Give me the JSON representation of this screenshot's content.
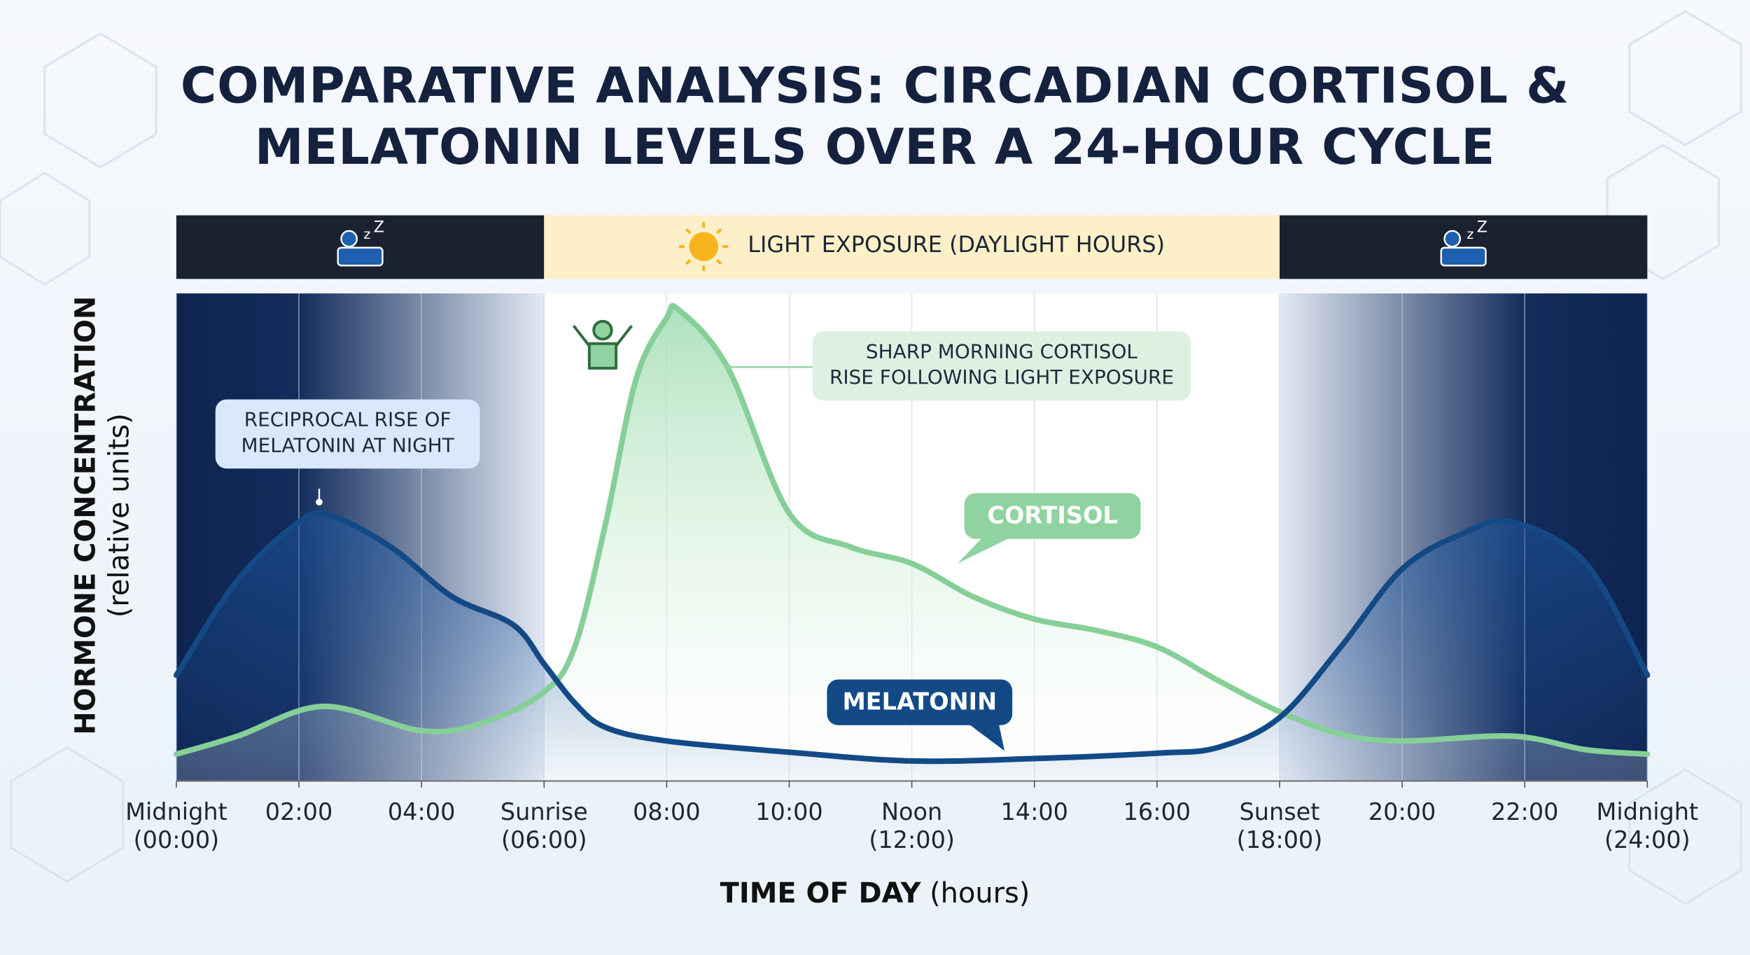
{
  "chart_data": {
    "type": "line",
    "title": "COMPARATIVE ANALYSIS: CIRCADIAN CORTISOL &\nMELATONIN LEVELS OVER A 24-HOUR CYCLE",
    "x_label": "TIME OF DAY",
    "x_label_unit": "(hours)",
    "y_label": "HORMONE CONCENTRATION",
    "y_label_unit": "(relative units)",
    "light_exposure": {
      "label": "LIGHT EXPOSURE (DAYLIGHT HOURS)",
      "start": 6,
      "end": 18
    },
    "xlim": [
      0,
      24
    ],
    "xticks": [
      {
        "value": 0,
        "label": "Midnight\n(00:00)"
      },
      {
        "value": 2,
        "label": "02:00"
      },
      {
        "value": 4,
        "label": "04:00"
      },
      {
        "value": 6,
        "label": "Sunrise\n(06:00)"
      },
      {
        "value": 8,
        "label": "08:00"
      },
      {
        "value": 10,
        "label": "10:00"
      },
      {
        "value": 12,
        "label": "Noon\n(12:00)"
      },
      {
        "value": 14,
        "label": "14:00"
      },
      {
        "value": 16,
        "label": "16:00"
      },
      {
        "value": 18,
        "label": "Sunset\n(18:00)"
      },
      {
        "value": 20,
        "label": "20:00"
      },
      {
        "value": 22,
        "label": "22:00"
      },
      {
        "value": 24,
        "label": "Midnight\n(24:00)"
      }
    ],
    "ylim": [
      0,
      100
    ],
    "grid": true,
    "series": [
      {
        "name": "CORTISOL",
        "color": "#86cf98",
        "x": [
          0,
          1,
          2.4,
          4,
          5,
          6,
          6.5,
          7,
          7.5,
          8,
          8.2,
          9,
          10,
          11,
          12,
          13,
          14,
          15,
          16,
          17,
          18,
          19,
          20,
          21.8,
          23,
          24
        ],
        "values": [
          5.5,
          9.2,
          15.3,
          10.3,
          11.9,
          18.3,
          27.5,
          52.6,
          82.4,
          95,
          96.6,
          84.7,
          54.9,
          48,
          44.6,
          37.8,
          33.2,
          30.9,
          27.5,
          20.6,
          14.2,
          9.6,
          8.2,
          9.2,
          6.4,
          5.5
        ]
      },
      {
        "name": "MELATONIN",
        "color": "#134a86",
        "x": [
          0,
          1,
          2,
          2.5,
          3.5,
          4.5,
          5.5,
          6,
          6.5,
          7,
          8,
          10,
          12,
          14,
          16,
          17,
          18,
          19,
          20,
          21,
          21.8,
          23,
          24
        ],
        "values": [
          21.7,
          41.2,
          53.1,
          54.5,
          48,
          37.8,
          32,
          24,
          16,
          11,
          8.2,
          5.9,
          4.1,
          4.6,
          5.7,
          6.9,
          13,
          27.5,
          43.5,
          50.8,
          53.1,
          44.6,
          21.7
        ]
      }
    ],
    "annotations": [
      {
        "text": "SHARP MORNING CORTISOL\nRISE FOLLOWING LIGHT EXPOSURE"
      },
      {
        "text": "RECIPROCAL RISE OF\nMELATONIN AT NIGHT"
      }
    ]
  }
}
